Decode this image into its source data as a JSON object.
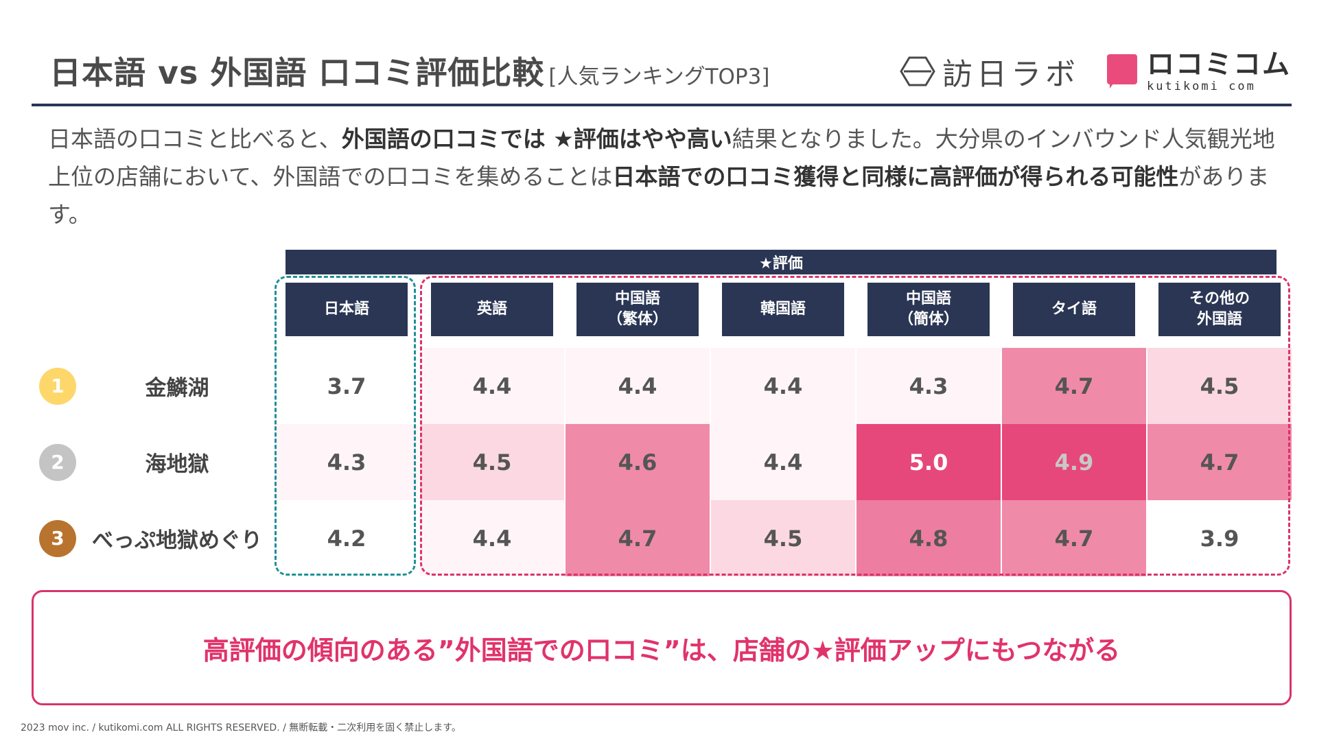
{
  "title": {
    "main": "日本語 vs 外国語 口コミ評価比較",
    "sub": "[人気ランキングTOP3]"
  },
  "logos": {
    "hounichi_text": "訪日ラボ",
    "kuchikomi_jp": "ロコミコム",
    "kuchikomi_en": "kutikomi com"
  },
  "lead": {
    "t1": "日本語の口コミと比べると、",
    "b1": "外国語の口コミでは ★評価はやや高い",
    "t2": "結果となりました。大分県のインバウンド人気観光地上位の店舗において、外国語での口コミを集めることは",
    "b2": "日本語での口コミ獲得と同様に高評価が得られる可能性",
    "t3": "があります。"
  },
  "chart_data": {
    "type": "heatmap",
    "title": "★評価",
    "columns": [
      "日本語",
      "英語",
      "中国語\n（繁体）",
      "韓国語",
      "中国語\n（簡体）",
      "タイ語",
      "その他の\n外国語"
    ],
    "ranks": [
      "1",
      "2",
      "3"
    ],
    "rows": [
      "金鱗湖",
      "海地獄",
      "べっぷ地獄めぐり"
    ],
    "values": [
      [
        3.7,
        4.4,
        4.4,
        4.4,
        4.3,
        4.7,
        4.5
      ],
      [
        4.3,
        4.5,
        4.6,
        4.4,
        5.0,
        4.9,
        4.7
      ],
      [
        4.2,
        4.4,
        4.7,
        4.5,
        4.8,
        4.7,
        3.9
      ]
    ],
    "groups": {
      "japanese": [
        0
      ],
      "foreign": [
        1,
        2,
        3,
        4,
        5,
        6
      ]
    }
  },
  "colors": {
    "navy": "#2a3654",
    "pink_accent": "#e0336c",
    "teal_dash": "#1f8f96",
    "rank1": "#fdd76a",
    "rank2": "#c4c4c4",
    "rank3": "#b8742e"
  },
  "callout": "高評価の傾向のある”外国語での口コミ”は、店舗の★評価アップにもつながる",
  "footer": "2023 mov inc. / kutikomi.com ALL RIGHTS RESERVED. / 無断転載・二次利用を固く禁止します。"
}
